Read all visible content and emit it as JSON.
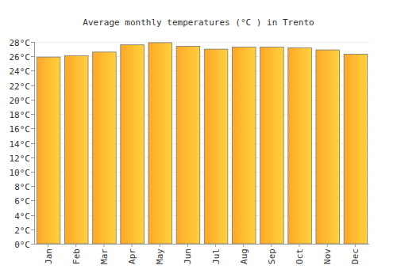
{
  "chart_data": {
    "type": "bar",
    "title": "Average monthly temperatures (°C ) in Trento",
    "categories": [
      "Jan",
      "Feb",
      "Mar",
      "Apr",
      "May",
      "Jun",
      "Jul",
      "Aug",
      "Sep",
      "Oct",
      "Nov",
      "Dec"
    ],
    "values": [
      25.9,
      26.1,
      26.6,
      27.6,
      27.9,
      27.4,
      27.0,
      27.3,
      27.3,
      27.2,
      26.9,
      26.3
    ],
    "color": "#ffa726",
    "ylim": [
      0,
      28
    ],
    "yticks": [
      {
        "value": 0,
        "label": "0°C"
      },
      {
        "value": 2,
        "label": "2°C"
      },
      {
        "value": 4,
        "label": "4°C"
      },
      {
        "value": 6,
        "label": "6°C"
      },
      {
        "value": 8,
        "label": "8°C"
      },
      {
        "value": 10,
        "label": "10°C"
      },
      {
        "value": 12,
        "label": "12°C"
      },
      {
        "value": 14,
        "label": "14°C"
      },
      {
        "value": 16,
        "label": "16°C"
      },
      {
        "value": 18,
        "label": "18°C"
      },
      {
        "value": 20,
        "label": "20°C"
      },
      {
        "value": 22,
        "label": "22°C"
      },
      {
        "value": 24,
        "label": "24°C"
      },
      {
        "value": 26,
        "label": "26°C"
      },
      {
        "value": 28,
        "label": "28°C"
      }
    ],
    "grid": true
  }
}
